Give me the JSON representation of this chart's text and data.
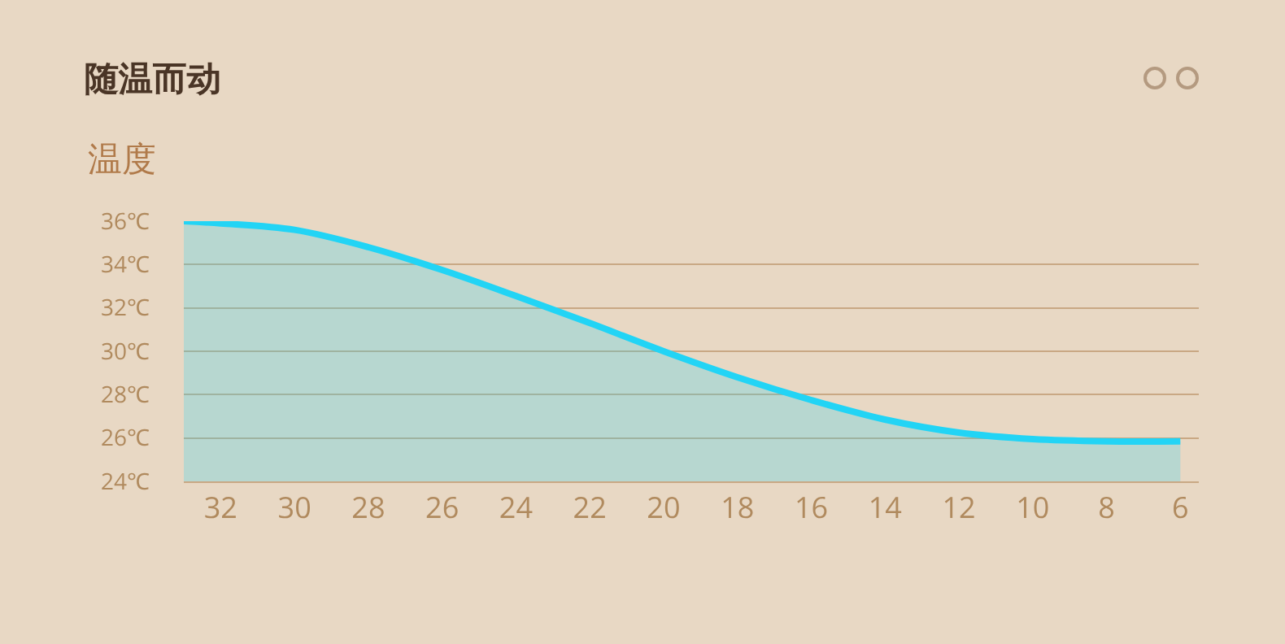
{
  "chart_data": {
    "type": "area",
    "title": "随温而动",
    "ylabel": "温度",
    "x": [
      33,
      32,
      30,
      28,
      26,
      24,
      22,
      20,
      18,
      16,
      14,
      12,
      10,
      8,
      6
    ],
    "series": [
      {
        "color": "#22d4f5",
        "values": [
          36,
          35.9,
          35.6,
          34.8,
          33.75,
          32.55,
          31.3,
          30,
          28.8,
          27.75,
          26.85,
          26.25,
          25.95,
          25.85,
          25.85
        ]
      }
    ],
    "xlim": [
      33,
      5.5
    ],
    "xticks": [
      32,
      30,
      28,
      26,
      24,
      22,
      20,
      18,
      16,
      14,
      12,
      10,
      8,
      6
    ],
    "ylim": [
      24,
      36
    ],
    "yticks": [
      {
        "value": 24,
        "label": "24℃"
      },
      {
        "value": 26,
        "label": "26℃"
      },
      {
        "value": 28,
        "label": "28℃"
      },
      {
        "value": 30,
        "label": "30℃"
      },
      {
        "value": 32,
        "label": "32℃"
      },
      {
        "value": 34,
        "label": "34℃"
      },
      {
        "value": 36,
        "label": "36℃"
      }
    ],
    "grid": "y",
    "marker": "none",
    "line_style": "solid"
  }
}
